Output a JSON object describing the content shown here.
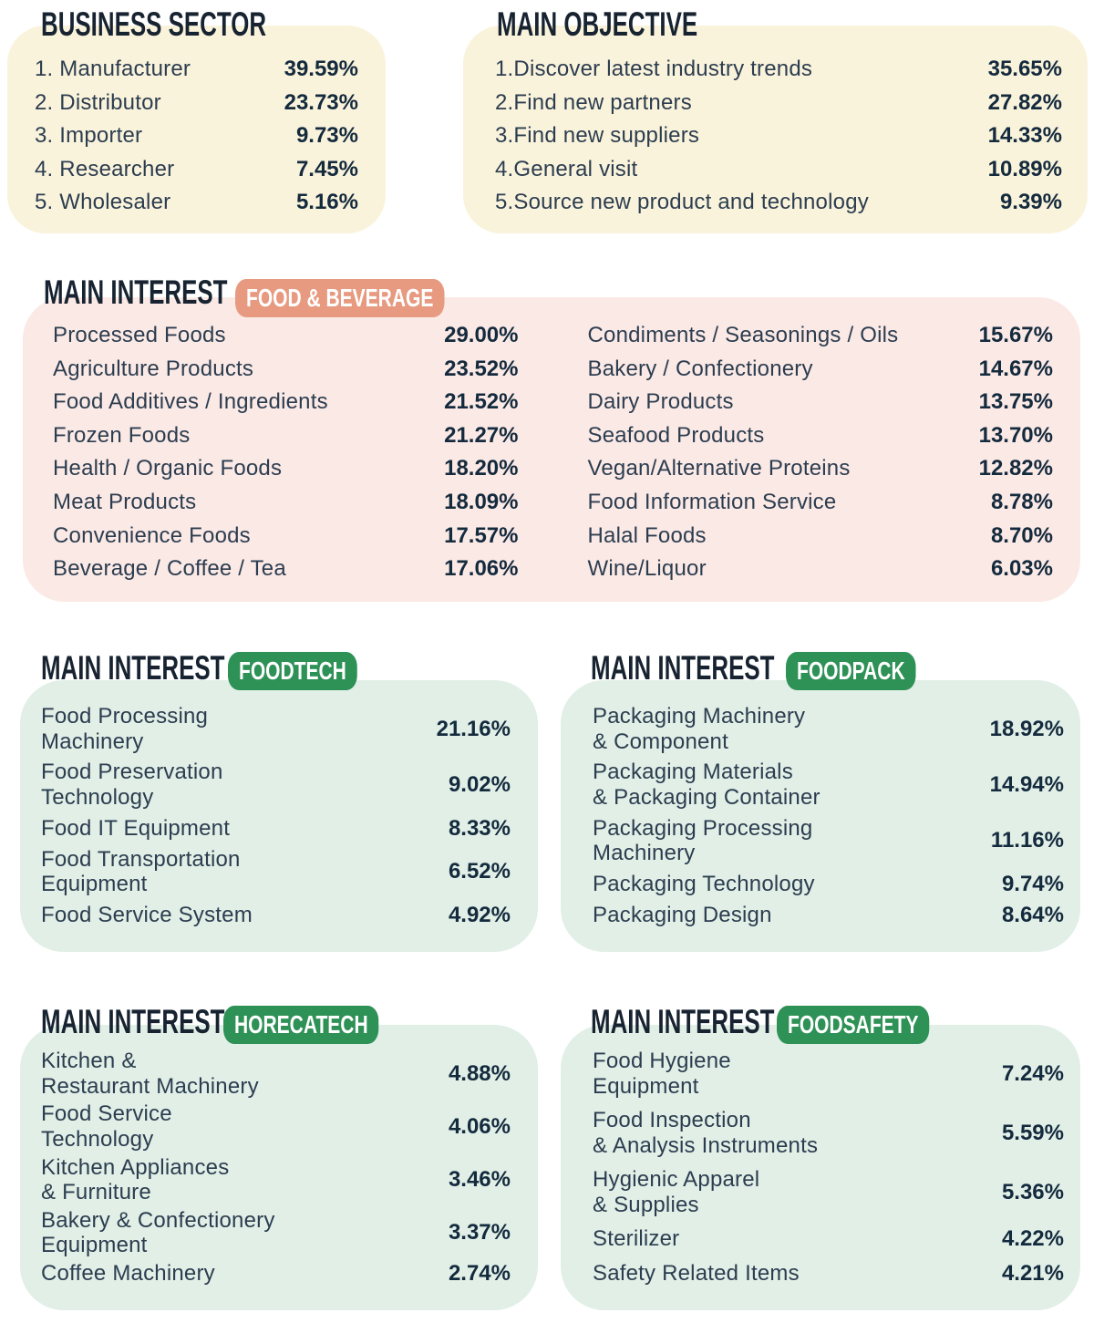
{
  "colors": {
    "cream_card": "#FAF3DC",
    "pink_card": "#FBE9E6",
    "mint_card": "#E1EFE7",
    "green_badge": "#2E9156",
    "salmon_badge": "#E79A80",
    "heading_text": "#172330",
    "label_text": "#2C3D4F",
    "value_text": "#142A3D"
  },
  "panels": {
    "business": {
      "title": "BUSINESS SECTOR",
      "items": [
        {
          "label": "1. Manufacturer",
          "value": "39.59%"
        },
        {
          "label": "2. Distributor",
          "value": "23.73%"
        },
        {
          "label": "3. Importer",
          "value": "9.73%"
        },
        {
          "label": "4. Researcher",
          "value": "7.45%"
        },
        {
          "label": "5. Wholesaler",
          "value": "5.16%"
        }
      ]
    },
    "objective": {
      "title": "MAIN OBJECTIVE",
      "items": [
        {
          "label": "1.Discover latest industry trends",
          "value": "35.65%"
        },
        {
          "label": "2.Find new partners",
          "value": "27.82%"
        },
        {
          "label": "3.Find new suppliers",
          "value": "14.33%"
        },
        {
          "label": "4.General visit",
          "value": "10.89%"
        },
        {
          "label": "5.Source new product and technology",
          "value": "9.39%"
        }
      ]
    },
    "fb": {
      "title": "MAIN INTEREST",
      "badge": "FOOD & BEVERAGE",
      "left": [
        {
          "label": "Processed Foods",
          "value": "29.00%"
        },
        {
          "label": "Agriculture Products",
          "value": "23.52%"
        },
        {
          "label": "Food Additives / Ingredients",
          "value": "21.52%"
        },
        {
          "label": "Frozen Foods",
          "value": "21.27%"
        },
        {
          "label": "Health / Organic Foods",
          "value": "18.20%"
        },
        {
          "label": "Meat Products",
          "value": "18.09%"
        },
        {
          "label": "Convenience Foods",
          "value": "17.57%"
        },
        {
          "label": "Beverage / Coffee / Tea",
          "value": "17.06%"
        }
      ],
      "right": [
        {
          "label": "Condiments / Seasonings / Oils",
          "value": "15.67%"
        },
        {
          "label": "Bakery / Confectionery",
          "value": "14.67%"
        },
        {
          "label": "Dairy Products",
          "value": "13.75%"
        },
        {
          "label": "Seafood Products",
          "value": "13.70%"
        },
        {
          "label": "Vegan/Alternative Proteins",
          "value": "12.82%"
        },
        {
          "label": "Food Information Service",
          "value": "8.78%"
        },
        {
          "label": "Halal Foods",
          "value": "8.70%"
        },
        {
          "label": "Wine/Liquor",
          "value": "6.03%"
        }
      ]
    },
    "foodtech": {
      "title": "MAIN INTEREST",
      "badge": "FOODTECH",
      "items": [
        {
          "label": "Food Processing\nMachinery",
          "value": "21.16%"
        },
        {
          "label": "Food Preservation\nTechnology",
          "value": "9.02%"
        },
        {
          "label": "Food IT Equipment",
          "value": "8.33%"
        },
        {
          "label": "Food Transportation\nEquipment",
          "value": "6.52%"
        },
        {
          "label": "Food Service System",
          "value": "4.92%"
        }
      ]
    },
    "foodpack": {
      "title": "MAIN INTEREST",
      "badge": "FOODPACK",
      "items": [
        {
          "label": "Packaging Machinery\n& Component",
          "value": "18.92%"
        },
        {
          "label": "Packaging Materials\n& Packaging Container",
          "value": "14.94%"
        },
        {
          "label": "Packaging Processing\nMachinery",
          "value": "11.16%"
        },
        {
          "label": "Packaging Technology",
          "value": "9.74%"
        },
        {
          "label": "Packaging Design",
          "value": "8.64%"
        }
      ]
    },
    "horecatech": {
      "title": "MAIN INTEREST",
      "badge": "HORECATECH",
      "items": [
        {
          "label": "Kitchen &\nRestaurant Machinery",
          "value": "4.88%"
        },
        {
          "label": "Food Service\nTechnology",
          "value": "4.06%"
        },
        {
          "label": "Kitchen Appliances\n& Furniture",
          "value": "3.46%"
        },
        {
          "label": "Bakery & Confectionery\nEquipment",
          "value": "3.37%"
        },
        {
          "label": "Coffee Machinery",
          "value": "2.74%"
        }
      ]
    },
    "foodsafety": {
      "title": "MAIN INTEREST",
      "badge": "FOODSAFETY",
      "items": [
        {
          "label": "Food Hygiene\nEquipment",
          "value": "7.24%"
        },
        {
          "label": "Food Inspection\n& Analysis Instruments",
          "value": "5.59%"
        },
        {
          "label": "Hygienic Apparel\n& Supplies",
          "value": "5.36%"
        },
        {
          "label": "Sterilizer",
          "value": "4.22%"
        },
        {
          "label": "Safety Related Items",
          "value": "4.21%"
        }
      ]
    }
  },
  "chart_data": [
    {
      "type": "table",
      "title": "BUSINESS SECTOR",
      "categories": [
        "Manufacturer",
        "Distributor",
        "Importer",
        "Researcher",
        "Wholesaler"
      ],
      "values": [
        39.59,
        23.73,
        9.73,
        7.45,
        5.16
      ],
      "unit": "%"
    },
    {
      "type": "table",
      "title": "MAIN OBJECTIVE",
      "categories": [
        "Discover latest industry trends",
        "Find new partners",
        "Find new suppliers",
        "General visit",
        "Source new product and technology"
      ],
      "values": [
        35.65,
        27.82,
        14.33,
        10.89,
        9.39
      ],
      "unit": "%"
    },
    {
      "type": "table",
      "title": "MAIN INTEREST - FOOD & BEVERAGE",
      "categories": [
        "Processed Foods",
        "Agriculture Products",
        "Food Additives / Ingredients",
        "Frozen Foods",
        "Health / Organic Foods",
        "Meat Products",
        "Convenience Foods",
        "Beverage / Coffee / Tea",
        "Condiments / Seasonings / Oils",
        "Bakery / Confectionery",
        "Dairy Products",
        "Seafood Products",
        "Vegan/Alternative Proteins",
        "Food Information Service",
        "Halal Foods",
        "Wine/Liquor"
      ],
      "values": [
        29.0,
        23.52,
        21.52,
        21.27,
        18.2,
        18.09,
        17.57,
        17.06,
        15.67,
        14.67,
        13.75,
        13.7,
        12.82,
        8.78,
        8.7,
        6.03
      ],
      "unit": "%"
    },
    {
      "type": "table",
      "title": "MAIN INTEREST - FOODTECH",
      "categories": [
        "Food Processing Machinery",
        "Food Preservation Technology",
        "Food IT Equipment",
        "Food Transportation Equipment",
        "Food Service System"
      ],
      "values": [
        21.16,
        9.02,
        8.33,
        6.52,
        4.92
      ],
      "unit": "%"
    },
    {
      "type": "table",
      "title": "MAIN INTEREST - FOODPACK",
      "categories": [
        "Packaging Machinery & Component",
        "Packaging Materials & Packaging Container",
        "Packaging Processing Machinery",
        "Packaging Technology",
        "Packaging Design"
      ],
      "values": [
        18.92,
        14.94,
        11.16,
        9.74,
        8.64
      ],
      "unit": "%"
    },
    {
      "type": "table",
      "title": "MAIN INTEREST - HORECATECH",
      "categories": [
        "Kitchen & Restaurant Machinery",
        "Food Service Technology",
        "Kitchen Appliances & Furniture",
        "Bakery & Confectionery Equipment",
        "Coffee Machinery"
      ],
      "values": [
        4.88,
        4.06,
        3.46,
        3.37,
        2.74
      ],
      "unit": "%"
    },
    {
      "type": "table",
      "title": "MAIN INTEREST - FOODSAFETY",
      "categories": [
        "Food Hygiene Equipment",
        "Food Inspection & Analysis Instruments",
        "Hygienic Apparel & Supplies",
        "Sterilizer",
        "Safety Related Items"
      ],
      "values": [
        7.24,
        5.59,
        5.36,
        4.22,
        4.21
      ],
      "unit": "%"
    }
  ]
}
